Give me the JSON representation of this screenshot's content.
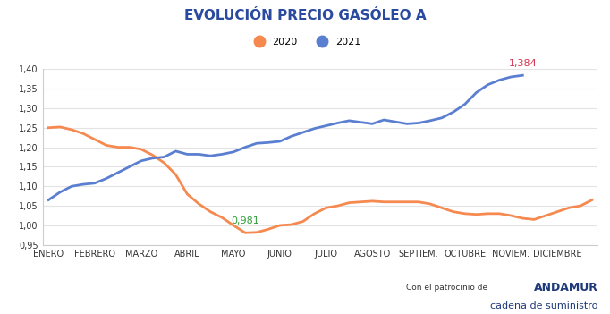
{
  "chart_data": {
    "type": "line",
    "title": "EVOLUCIÓN PRECIO GASÓLEO A",
    "categories": [
      "ENERO",
      null,
      null,
      null,
      "FEBRERO",
      null,
      null,
      null,
      "MARZO",
      null,
      null,
      null,
      "ABRIL",
      null,
      null,
      null,
      "MAYO",
      null,
      null,
      null,
      "JUNIO",
      null,
      null,
      null,
      "JULIO",
      null,
      null,
      null,
      "AGOSTO",
      null,
      null,
      null,
      "SEPTIEM.",
      null,
      null,
      null,
      "OCTUBRE",
      null,
      null,
      null,
      "NOVIEM.",
      null,
      null,
      null,
      "DICIEMBRE",
      null,
      null,
      null
    ],
    "series": [
      {
        "name": "2020",
        "color": "#f5894f",
        "values": [
          1.25,
          1.252,
          1.245,
          1.235,
          1.22,
          1.205,
          1.2,
          1.2,
          1.195,
          1.18,
          1.16,
          1.13,
          1.08,
          1.055,
          1.035,
          1.02,
          1.0,
          0.981,
          0.982,
          0.99,
          1.0,
          1.002,
          1.01,
          1.03,
          1.045,
          1.05,
          1.058,
          1.06,
          1.062,
          1.06,
          1.06,
          1.06,
          1.06,
          1.055,
          1.045,
          1.035,
          1.03,
          1.028,
          1.03,
          1.03,
          1.025,
          1.018,
          1.015,
          1.025,
          1.035,
          1.045,
          1.05,
          1.065
        ]
      },
      {
        "name": "2021",
        "color": "#5b7fd0",
        "values": [
          1.065,
          1.085,
          1.1,
          1.105,
          1.108,
          1.12,
          1.135,
          1.15,
          1.165,
          1.172,
          1.175,
          1.19,
          1.182,
          1.182,
          1.178,
          1.182,
          1.188,
          1.2,
          1.21,
          1.212,
          1.215,
          1.228,
          1.238,
          1.248,
          1.255,
          1.262,
          1.268,
          1.264,
          1.26,
          1.27,
          1.265,
          1.26,
          1.262,
          1.268,
          1.275,
          1.29,
          1.31,
          1.34,
          1.36,
          1.372,
          1.38,
          1.384,
          null,
          null,
          null,
          null,
          null,
          null
        ]
      }
    ],
    "annotations": [
      {
        "text": "0,981",
        "series": "2020",
        "value": 0.981,
        "color": "#2e9e3a"
      },
      {
        "text": "1,384",
        "series": "2021",
        "value": 1.384,
        "color": "#d6304a"
      }
    ],
    "ylim": [
      0.95,
      1.4
    ],
    "yticks": [
      {
        "value": 0.95,
        "label": "0,95"
      },
      {
        "value": 1.0,
        "label": "1,00"
      },
      {
        "value": 1.05,
        "label": "1,05"
      },
      {
        "value": 1.1,
        "label": "1,10"
      },
      {
        "value": 1.15,
        "label": "1,15"
      },
      {
        "value": 1.2,
        "label": "1,20"
      },
      {
        "value": 1.25,
        "label": "1,25"
      },
      {
        "value": 1.3,
        "label": "1,30"
      },
      {
        "value": 1.35,
        "label": "1,35"
      },
      {
        "value": 1.4,
        "label": "1,40"
      }
    ],
    "grid": true,
    "legend": "upper center",
    "footer": [
      "Con el patrocinio de",
      "ANDAMUR",
      "cadena de suministro"
    ]
  }
}
